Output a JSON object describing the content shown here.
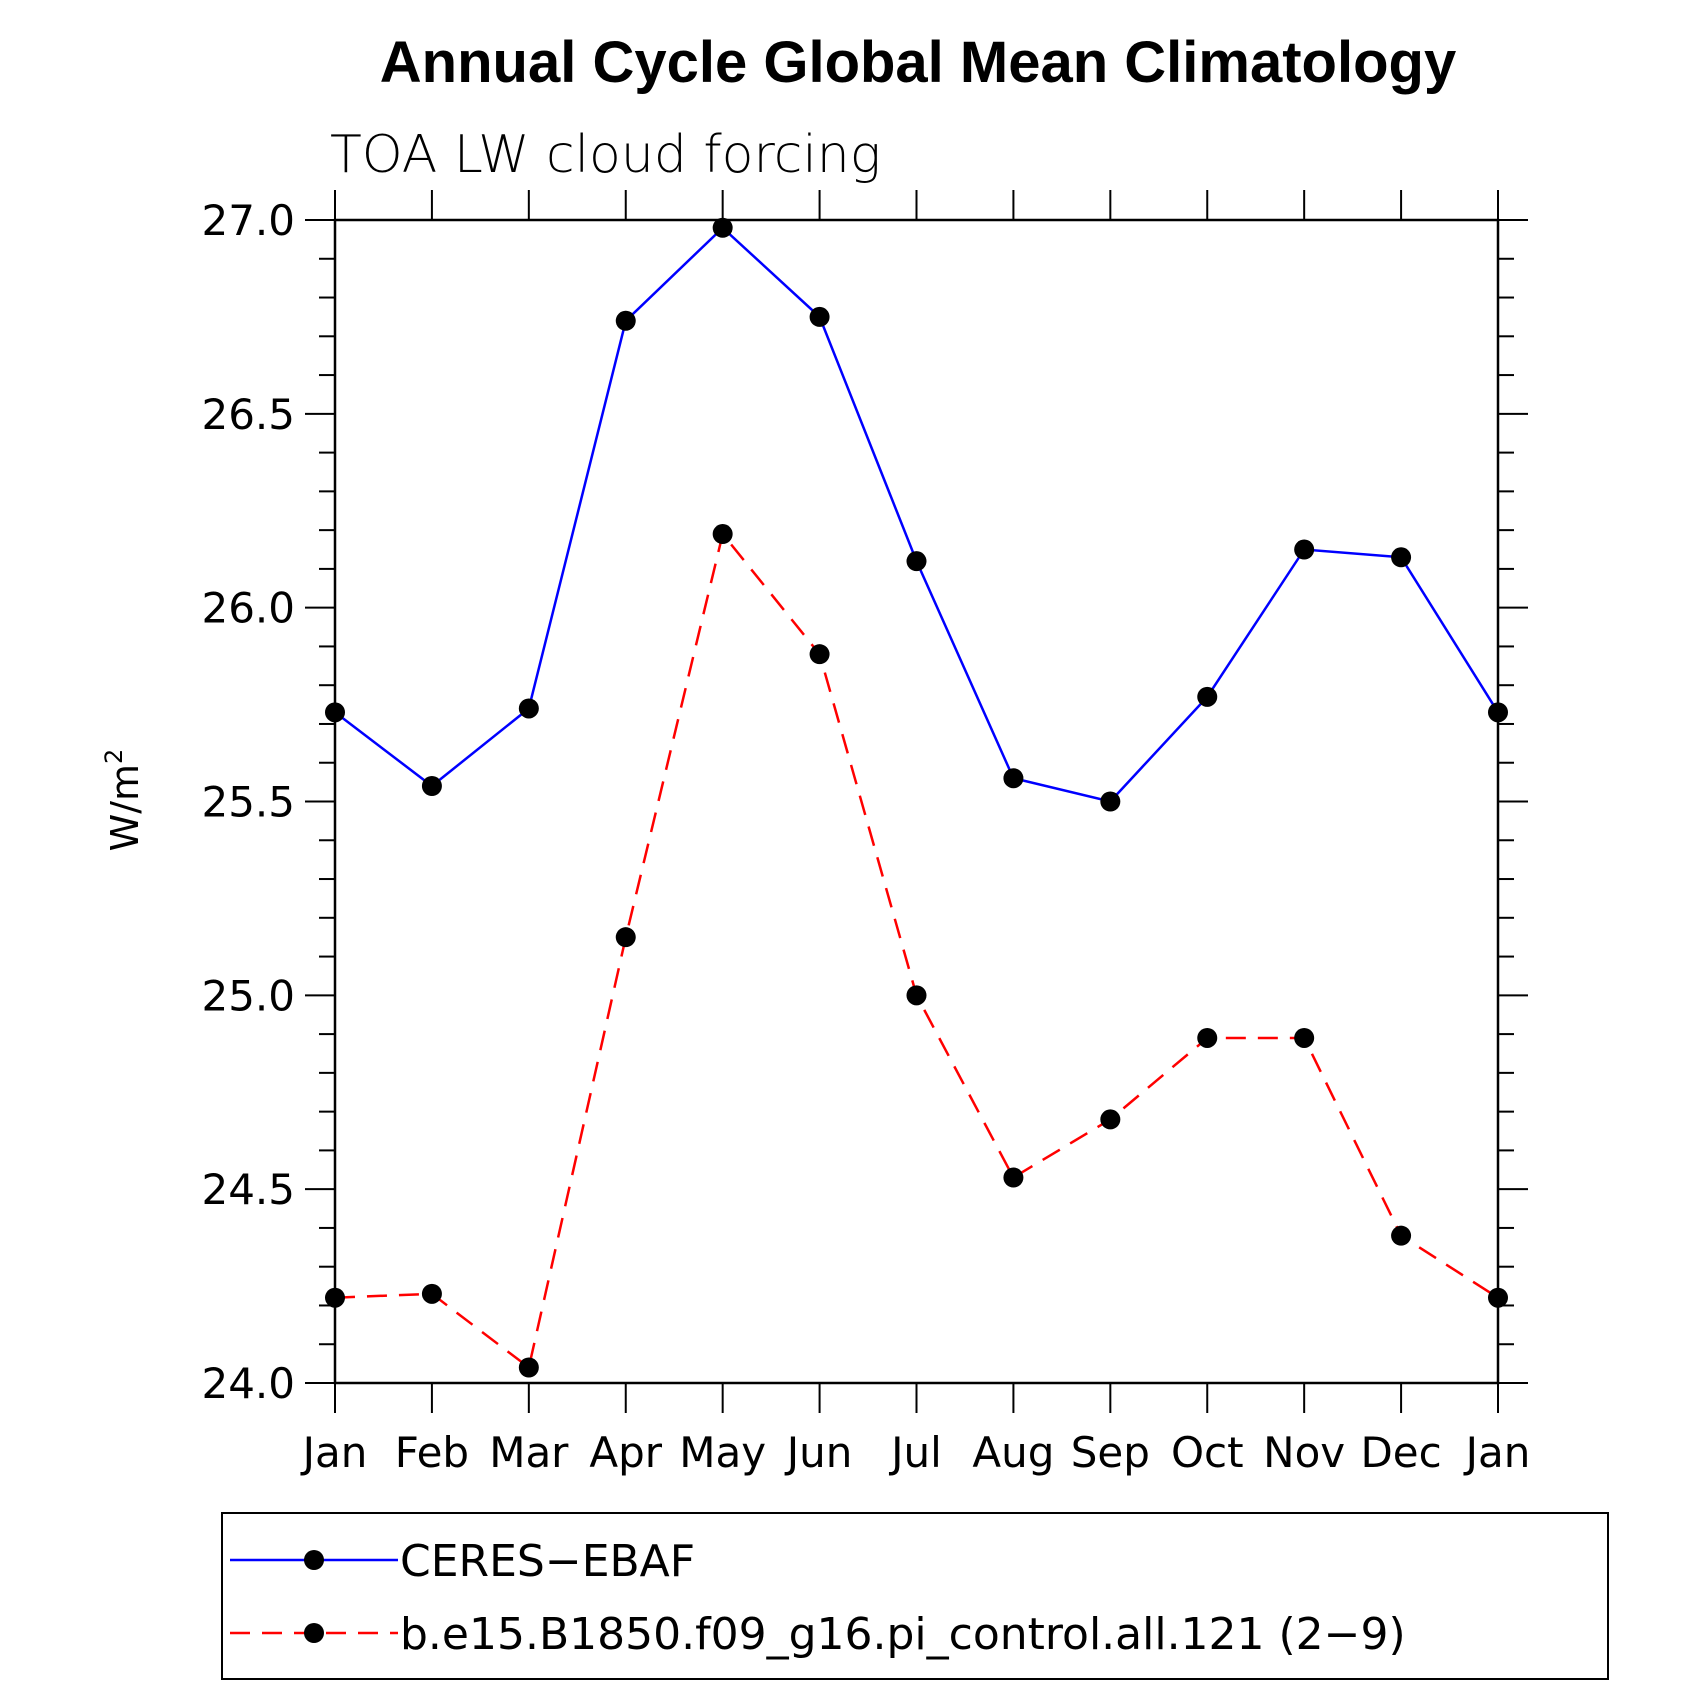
{
  "chart_data": {
    "type": "line",
    "title": "Annual Cycle Global Mean Climatology",
    "subtitle": "TOA LW cloud forcing",
    "ylabel": "W/m",
    "ylabel_superscript": "2",
    "ylim": [
      24.0,
      27.0
    ],
    "yticks": [
      24.0,
      24.5,
      25.0,
      25.5,
      26.0,
      26.5,
      27.0
    ],
    "ytick_labels": [
      "24.0",
      "24.5",
      "25.0",
      "25.5",
      "26.0",
      "26.5",
      "27.0"
    ],
    "categories": [
      "Jan",
      "Feb",
      "Mar",
      "Apr",
      "May",
      "Jun",
      "Jul",
      "Aug",
      "Sep",
      "Oct",
      "Nov",
      "Dec",
      "Jan"
    ],
    "grid": false,
    "legend_position": "bottom",
    "series": [
      {
        "name": "CERES−EBAF",
        "color": "#0000ff",
        "dash": "solid",
        "values": [
          25.73,
          25.54,
          25.74,
          26.74,
          26.98,
          26.75,
          26.12,
          25.56,
          25.5,
          25.77,
          26.15,
          26.13,
          25.73
        ]
      },
      {
        "name": "b.e15.B1850.f09_g16.pi_control.all.121 (2−9)",
        "color": "#ff0000",
        "dash": "dashed",
        "values": [
          24.22,
          24.23,
          24.04,
          25.15,
          26.19,
          25.88,
          25.0,
          24.53,
          24.68,
          24.89,
          24.89,
          24.38,
          24.22
        ]
      }
    ]
  }
}
